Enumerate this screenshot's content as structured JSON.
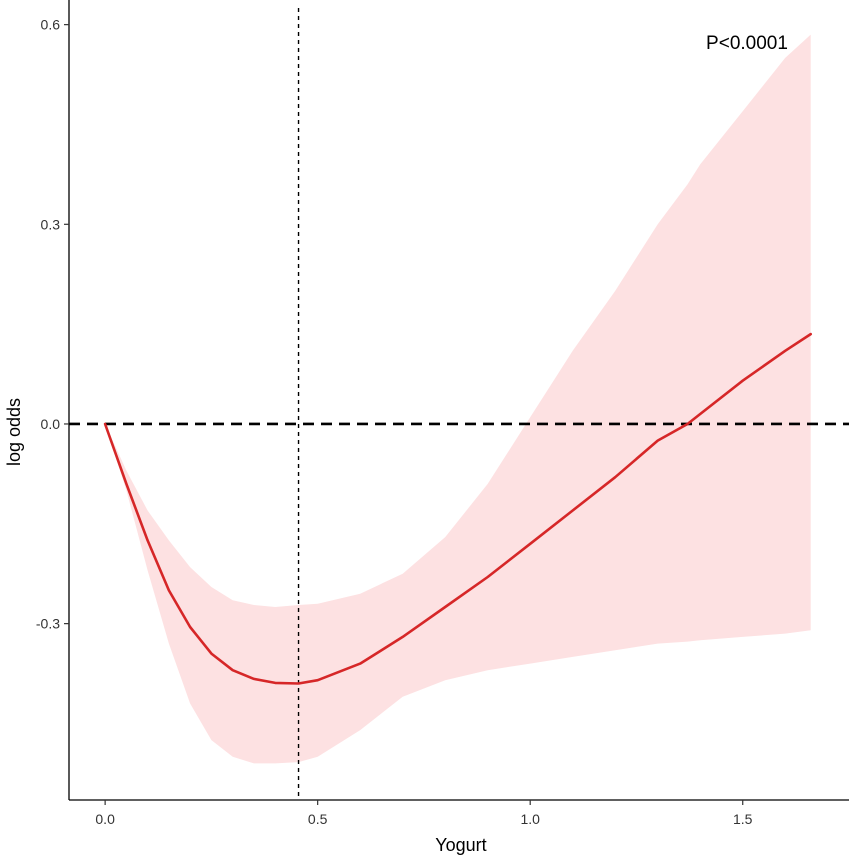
{
  "chart_data": {
    "type": "line",
    "title": "",
    "xlabel": "Yogurt",
    "ylabel": "log odds",
    "xlim": [
      -0.085,
      1.75
    ],
    "ylim": [
      -0.565,
      0.625
    ],
    "x_ticks": [
      0.0,
      0.5,
      1.0,
      1.5
    ],
    "x_tick_labels": [
      "0.0",
      "0.5",
      "1.0",
      "1.5"
    ],
    "y_ticks": [
      -0.3,
      0.0,
      0.3,
      0.6
    ],
    "y_tick_labels": [
      "-0.3",
      "0.0",
      "0.3",
      "0.6"
    ],
    "grid": false,
    "annotation": "P<0.0001",
    "reference_lines": {
      "horizontal_y": 0.0,
      "vertical_x": 0.455
    },
    "colors": {
      "line": "#d62728",
      "band": "#fde1e2",
      "reference": "#000000"
    },
    "x": [
      0.0,
      0.05,
      0.1,
      0.15,
      0.2,
      0.25,
      0.3,
      0.35,
      0.4,
      0.455,
      0.5,
      0.6,
      0.7,
      0.8,
      0.9,
      1.0,
      1.1,
      1.2,
      1.3,
      1.37,
      1.4,
      1.5,
      1.6,
      1.66
    ],
    "series": [
      {
        "values": [
          0.0,
          -0.09,
          -0.175,
          -0.25,
          -0.305,
          -0.345,
          -0.37,
          -0.383,
          -0.389,
          -0.39,
          -0.385,
          -0.36,
          -0.32,
          -0.275,
          -0.23,
          -0.18,
          -0.13,
          -0.08,
          -0.025,
          0.0,
          0.015,
          0.065,
          0.11,
          0.135
        ]
      }
    ],
    "band": {
      "lower": [
        0.0,
        -0.1,
        -0.22,
        -0.33,
        -0.42,
        -0.475,
        -0.5,
        -0.51,
        -0.51,
        -0.508,
        -0.5,
        -0.46,
        -0.41,
        -0.385,
        -0.37,
        -0.36,
        -0.35,
        -0.34,
        -0.33,
        -0.327,
        -0.325,
        -0.32,
        -0.315,
        -0.31
      ],
      "upper": [
        0.0,
        -0.07,
        -0.13,
        -0.175,
        -0.215,
        -0.245,
        -0.265,
        -0.272,
        -0.275,
        -0.272,
        -0.27,
        -0.255,
        -0.225,
        -0.17,
        -0.09,
        0.01,
        0.11,
        0.2,
        0.3,
        0.36,
        0.39,
        0.47,
        0.55,
        0.585
      ]
    }
  }
}
